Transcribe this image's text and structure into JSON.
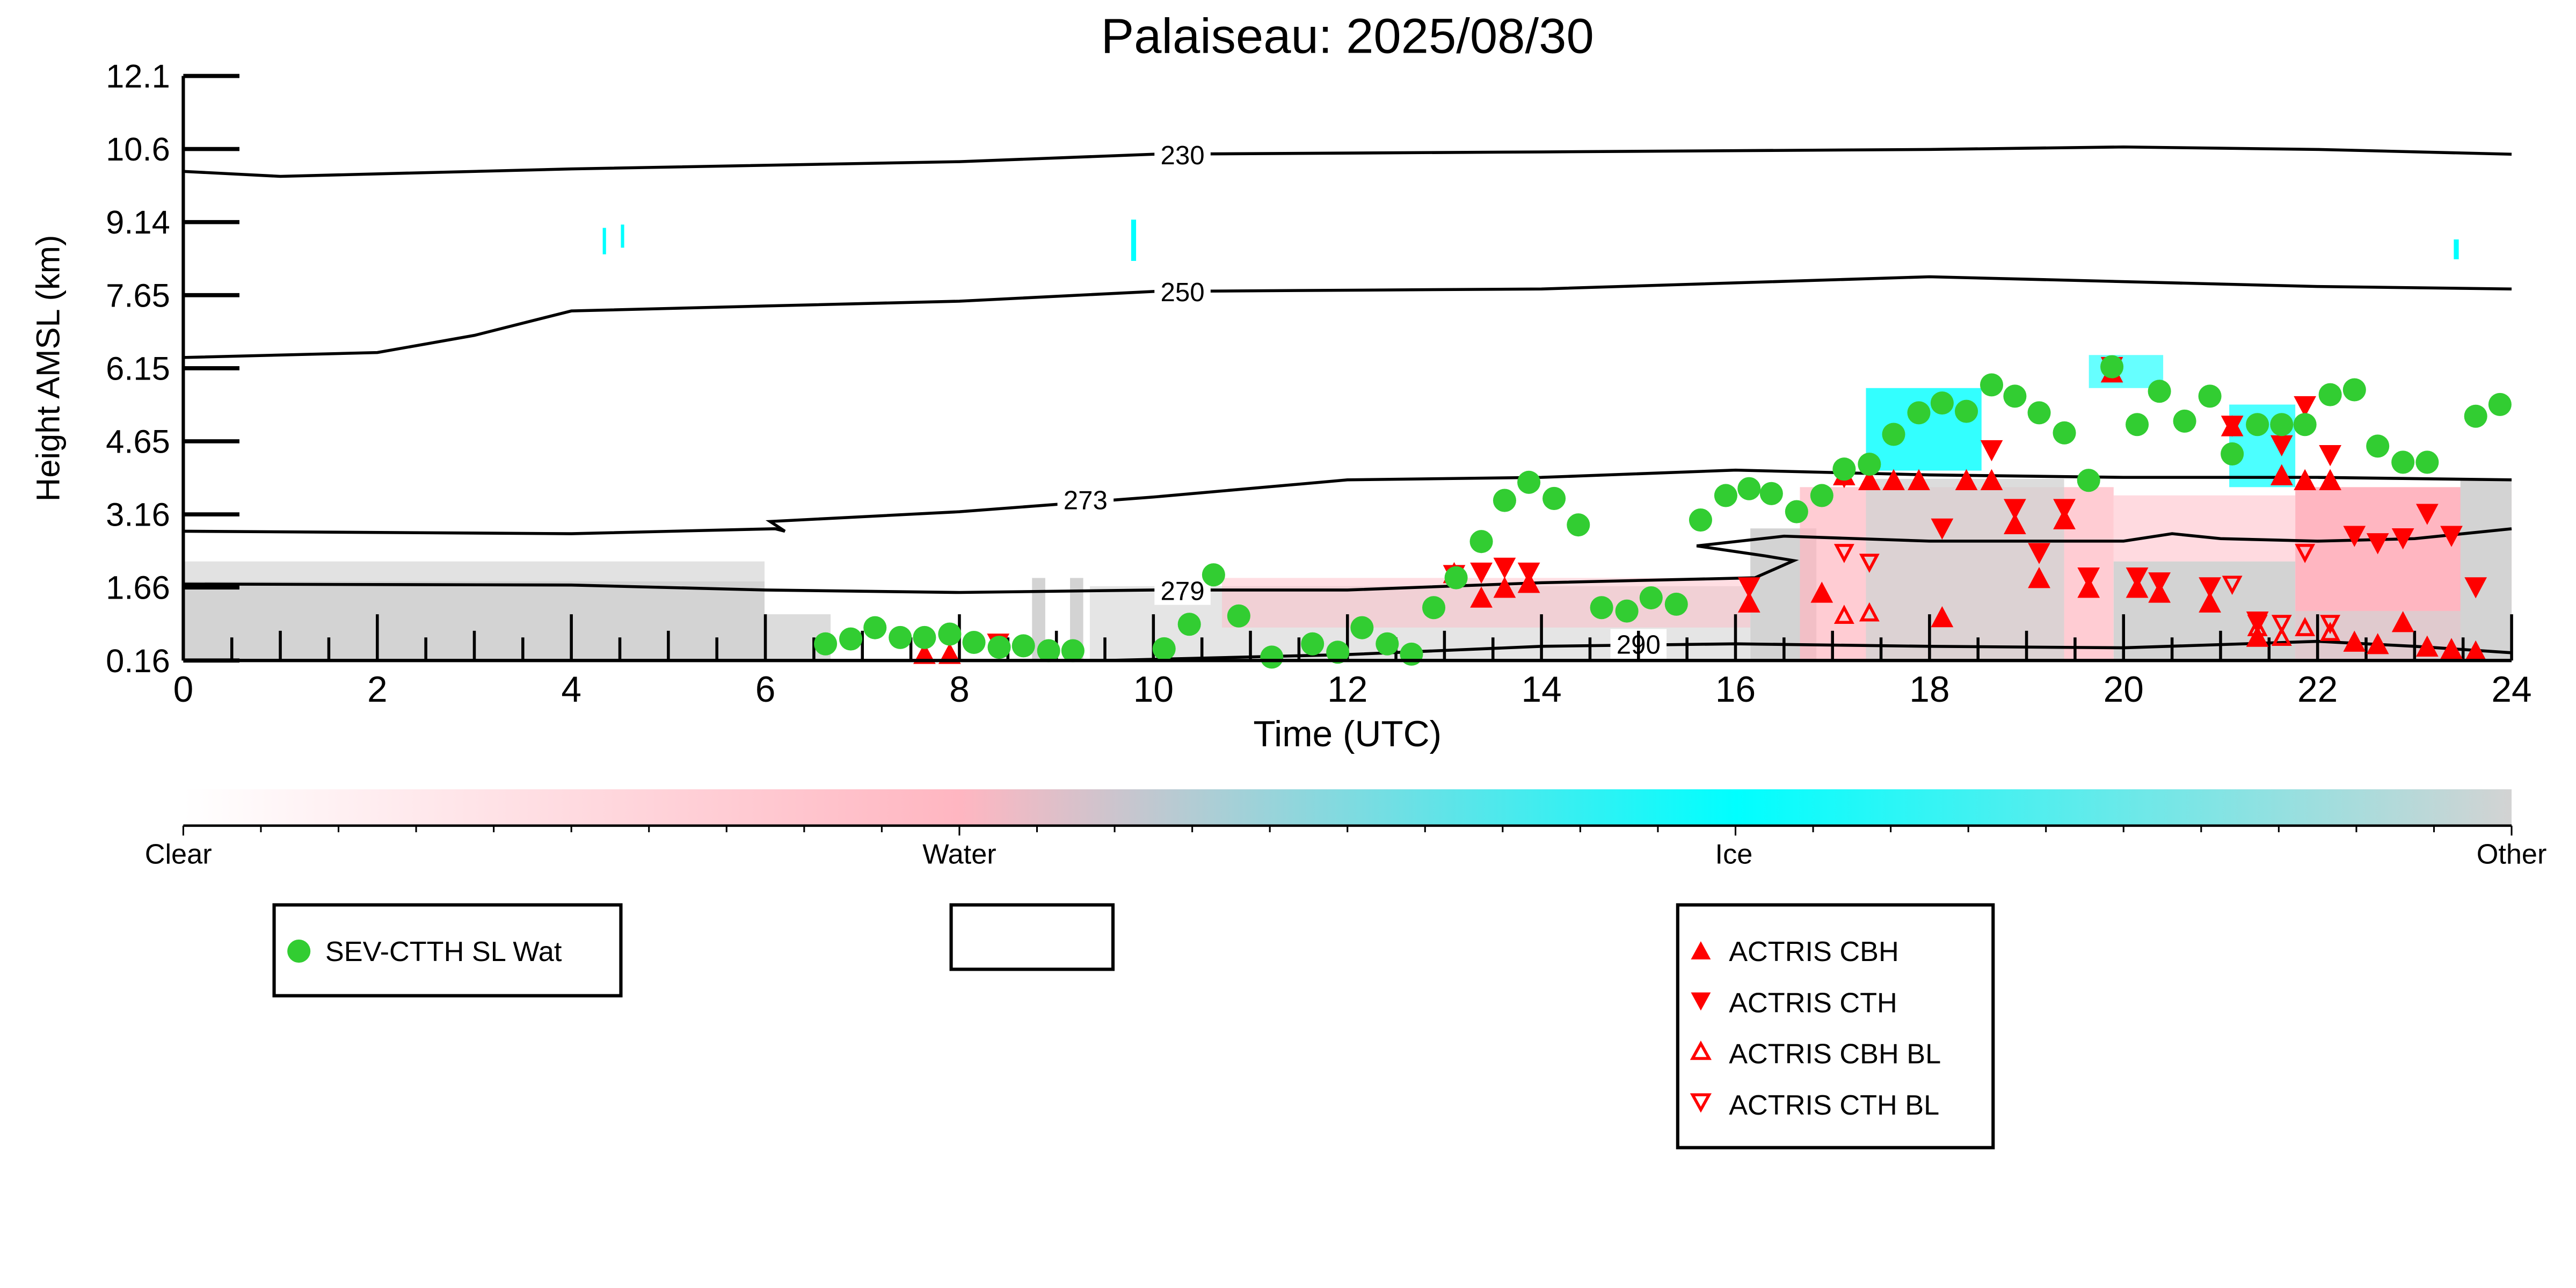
{
  "chart_data": {
    "type": "scatter",
    "title": "Palaiseau: 2025/08/30",
    "xlabel": "Time (UTC)",
    "ylabel": "Height AMSL (km)",
    "xlim": [
      0,
      24
    ],
    "ylim": [
      0.16,
      12.1
    ],
    "x_ticks": [
      "0",
      "2",
      "4",
      "6",
      "8",
      "10",
      "12",
      "14",
      "16",
      "18",
      "20",
      "22",
      "24"
    ],
    "y_ticks": [
      "0.16",
      "1.66",
      "3.16",
      "4.65",
      "6.15",
      "7.65",
      "9.14",
      "10.6",
      "12.1"
    ],
    "colorbar": {
      "labels": [
        "Clear",
        "Water",
        "Ice",
        "Other"
      ],
      "colors": [
        "#ffffff",
        "#ffb6c1",
        "#00ffff",
        "#d3d3d3"
      ]
    },
    "contours": [
      {
        "label": "230",
        "points": [
          [
            0,
            10.15
          ],
          [
            1,
            10.05
          ],
          [
            4,
            10.2
          ],
          [
            8,
            10.35
          ],
          [
            10,
            10.5
          ],
          [
            14,
            10.55
          ],
          [
            18,
            10.6
          ],
          [
            20,
            10.65
          ],
          [
            22,
            10.6
          ],
          [
            24,
            10.5
          ]
        ]
      },
      {
        "label": "250",
        "points": [
          [
            0,
            6.35
          ],
          [
            2,
            6.45
          ],
          [
            3,
            6.8
          ],
          [
            3.6,
            7.1
          ],
          [
            4,
            7.3
          ],
          [
            6,
            7.4
          ],
          [
            8,
            7.5
          ],
          [
            10,
            7.7
          ],
          [
            14,
            7.75
          ],
          [
            18,
            8.0
          ],
          [
            22,
            7.8
          ],
          [
            24,
            7.75
          ]
        ]
      },
      {
        "label": "273",
        "points": [
          [
            0,
            2.8
          ],
          [
            4,
            2.75
          ],
          [
            6.1,
            2.85
          ],
          [
            6.2,
            2.8
          ],
          [
            6.05,
            3.0
          ],
          [
            8,
            3.2
          ],
          [
            10,
            3.5
          ],
          [
            12,
            3.85
          ],
          [
            14,
            3.9
          ],
          [
            16,
            4.05
          ],
          [
            18,
            3.95
          ],
          [
            20,
            3.9
          ],
          [
            22,
            3.9
          ],
          [
            24,
            3.85
          ]
        ]
      },
      {
        "label": "",
        "points": [
          [
            24,
            2.85
          ],
          [
            23,
            2.65
          ],
          [
            22,
            2.6
          ],
          [
            21,
            2.65
          ],
          [
            20.5,
            2.75
          ],
          [
            20,
            2.6
          ],
          [
            18,
            2.6
          ],
          [
            16.5,
            2.7
          ],
          [
            15.6,
            2.5
          ],
          [
            16.3,
            2.3
          ],
          [
            16.6,
            2.2
          ],
          [
            16.2,
            1.85
          ],
          [
            14,
            1.75
          ],
          [
            12,
            1.6
          ],
          [
            10,
            1.6
          ],
          [
            8,
            1.55
          ],
          [
            6,
            1.6
          ],
          [
            4,
            1.7
          ],
          [
            0,
            1.72
          ]
        ]
      },
      {
        "label": "279",
        "points": []
      },
      {
        "label": "290",
        "points": [
          [
            9.5,
            0.16
          ],
          [
            12,
            0.28
          ],
          [
            14,
            0.45
          ],
          [
            16,
            0.5
          ],
          [
            18,
            0.45
          ],
          [
            20,
            0.42
          ],
          [
            22,
            0.55
          ],
          [
            23,
            0.45
          ],
          [
            24,
            0.32
          ]
        ]
      }
    ],
    "contour_label_positions": [
      [
        10.3,
        10.5
      ],
      [
        10.3,
        7.7
      ],
      [
        9.3,
        3.45
      ],
      [
        10.3,
        1.6
      ],
      [
        15.0,
        0.5
      ]
    ],
    "contour_label_texts": [
      "230",
      "250",
      "273",
      "279",
      "290"
    ],
    "series": [
      {
        "name": "SEV-CTTH SL Wat",
        "marker": "circle",
        "color": "#32cd32",
        "points": [
          [
            6.62,
            0.5
          ],
          [
            6.88,
            0.6
          ],
          [
            7.13,
            0.83
          ],
          [
            7.39,
            0.63
          ],
          [
            7.64,
            0.63
          ],
          [
            7.9,
            0.7
          ],
          [
            8.15,
            0.53
          ],
          [
            8.41,
            0.43
          ],
          [
            8.66,
            0.46
          ],
          [
            8.92,
            0.36
          ],
          [
            9.17,
            0.36
          ],
          [
            10.11,
            0.4
          ],
          [
            10.37,
            0.9
          ],
          [
            10.62,
            1.91
          ],
          [
            10.88,
            1.07
          ],
          [
            11.22,
            0.23
          ],
          [
            11.64,
            0.5
          ],
          [
            11.9,
            0.33
          ],
          [
            12.15,
            0.83
          ],
          [
            12.41,
            0.5
          ],
          [
            12.66,
            0.29
          ],
          [
            12.89,
            1.24
          ],
          [
            13.12,
            1.85
          ],
          [
            13.38,
            2.59
          ],
          [
            13.62,
            3.43
          ],
          [
            13.87,
            3.8
          ],
          [
            14.13,
            3.47
          ],
          [
            14.38,
            2.93
          ],
          [
            14.62,
            1.24
          ],
          [
            14.88,
            1.17
          ],
          [
            15.13,
            1.44
          ],
          [
            15.39,
            1.31
          ],
          [
            15.64,
            3.03
          ],
          [
            15.9,
            3.53
          ],
          [
            16.14,
            3.67
          ],
          [
            16.37,
            3.57
          ],
          [
            16.63,
            3.2
          ],
          [
            16.89,
            3.53
          ],
          [
            17.12,
            4.07
          ],
          [
            17.38,
            4.17
          ],
          [
            17.63,
            4.78
          ],
          [
            17.89,
            5.22
          ],
          [
            18.13,
            5.42
          ],
          [
            18.38,
            5.25
          ],
          [
            18.64,
            5.79
          ],
          [
            18.88,
            5.56
          ],
          [
            19.13,
            5.22
          ],
          [
            19.39,
            4.81
          ],
          [
            19.64,
            3.84
          ],
          [
            19.88,
            6.16
          ],
          [
            20.14,
            4.98
          ],
          [
            20.37,
            5.66
          ],
          [
            20.63,
            5.05
          ],
          [
            20.89,
            5.56
          ],
          [
            21.12,
            4.38
          ],
          [
            21.38,
            4.98
          ],
          [
            21.63,
            4.98
          ],
          [
            21.87,
            4.98
          ],
          [
            22.13,
            5.59
          ],
          [
            22.38,
            5.69
          ],
          [
            22.62,
            4.54
          ],
          [
            22.88,
            4.21
          ],
          [
            23.13,
            4.21
          ],
          [
            23.63,
            5.15
          ],
          [
            23.88,
            5.39
          ]
        ]
      },
      {
        "name": "ACTRIS CBH",
        "marker": "triangle-up",
        "color": "#ff0000",
        "points": [
          [
            7.64,
            0.25
          ],
          [
            7.9,
            0.25
          ],
          [
            13.1,
            1.9
          ],
          [
            13.38,
            1.4
          ],
          [
            13.62,
            1.6
          ],
          [
            13.87,
            1.7
          ],
          [
            16.14,
            1.3
          ],
          [
            16.89,
            1.5
          ],
          [
            17.12,
            3.9
          ],
          [
            17.38,
            3.8
          ],
          [
            17.63,
            3.8
          ],
          [
            17.89,
            3.8
          ],
          [
            18.13,
            1.0
          ],
          [
            18.38,
            3.8
          ],
          [
            18.64,
            3.8
          ],
          [
            18.88,
            2.9
          ],
          [
            19.13,
            1.8
          ],
          [
            19.39,
            3.0
          ],
          [
            19.64,
            1.6
          ],
          [
            19.88,
            6.0
          ],
          [
            20.14,
            1.6
          ],
          [
            20.37,
            1.5
          ],
          [
            20.89,
            1.3
          ],
          [
            21.12,
            4.9
          ],
          [
            21.38,
            0.6
          ],
          [
            21.63,
            3.9
          ],
          [
            21.87,
            3.8
          ],
          [
            22.13,
            3.8
          ],
          [
            22.38,
            0.5
          ],
          [
            22.62,
            0.45
          ],
          [
            22.88,
            0.9
          ],
          [
            23.13,
            0.4
          ],
          [
            23.38,
            0.35
          ],
          [
            23.63,
            0.3
          ]
        ]
      },
      {
        "name": "ACTRIS CTH",
        "marker": "triangle-down",
        "color": "#ff0000",
        "points": [
          [
            8.4,
            0.55
          ],
          [
            13.1,
            1.95
          ],
          [
            13.38,
            2.0
          ],
          [
            13.62,
            2.1
          ],
          [
            13.87,
            2.0
          ],
          [
            16.14,
            1.7
          ],
          [
            17.12,
            3.95
          ],
          [
            18.13,
            2.9
          ],
          [
            18.64,
            4.5
          ],
          [
            18.88,
            3.3
          ],
          [
            19.13,
            2.4
          ],
          [
            19.39,
            3.3
          ],
          [
            19.64,
            1.9
          ],
          [
            19.88,
            6.2
          ],
          [
            20.14,
            1.9
          ],
          [
            20.37,
            1.8
          ],
          [
            20.89,
            1.7
          ],
          [
            21.12,
            5.0
          ],
          [
            21.38,
            1.0
          ],
          [
            21.63,
            4.6
          ],
          [
            21.87,
            5.4
          ],
          [
            22.13,
            4.4
          ],
          [
            22.38,
            2.75
          ],
          [
            22.62,
            2.6
          ],
          [
            22.88,
            2.7
          ],
          [
            23.13,
            3.2
          ],
          [
            23.38,
            2.75
          ],
          [
            23.63,
            1.7
          ]
        ]
      },
      {
        "name": "ACTRIS CBH BL",
        "marker": "triangle-up-open",
        "color": "#ff0000",
        "points": [
          [
            17.12,
            1.05
          ],
          [
            17.38,
            1.1
          ],
          [
            21.38,
            0.8
          ],
          [
            21.63,
            0.6
          ],
          [
            21.87,
            0.8
          ],
          [
            22.13,
            0.7
          ]
        ]
      },
      {
        "name": "ACTRIS CTH BL",
        "marker": "triangle-down-open",
        "color": "#ff0000",
        "points": [
          [
            17.12,
            2.4
          ],
          [
            17.38,
            2.2
          ],
          [
            21.12,
            1.75
          ],
          [
            21.38,
            0.95
          ],
          [
            21.63,
            0.95
          ],
          [
            21.87,
            2.4
          ],
          [
            22.13,
            0.95
          ]
        ]
      }
    ],
    "legend_left": [
      "SEV-CTTH SL Wat"
    ],
    "legend_right": [
      "ACTRIS CBH",
      "ACTRIS CTH",
      "ACTRIS CBH BL",
      "ACTRIS CTH BL"
    ]
  }
}
